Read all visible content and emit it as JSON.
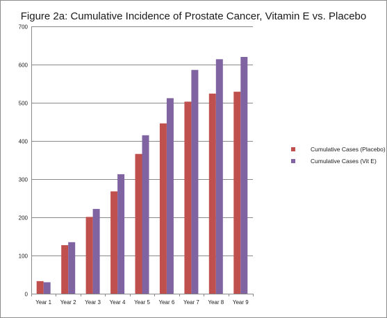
{
  "chart_data": {
    "type": "bar",
    "title": "Figure 2a: Cumulative Incidence of Prostate Cancer, Vitamin E vs. Placebo",
    "xlabel": "",
    "ylabel": "",
    "categories": [
      "Year 1",
      "Year 2",
      "Year 3",
      "Year 4",
      "Year 5",
      "Year 6",
      "Year 7",
      "Year 8",
      "Year 9"
    ],
    "series": [
      {
        "name": "Cumulative  Cases (Placebo)",
        "color": "#c0504d",
        "values": [
          33,
          127,
          201,
          268,
          366,
          446,
          503,
          524,
          529
        ]
      },
      {
        "name": "Cumulative  Cases (Vit E)",
        "color": "#8064a2",
        "values": [
          30,
          135,
          222,
          313,
          415,
          512,
          586,
          614,
          620
        ]
      }
    ],
    "ylim": [
      0,
      700
    ],
    "yticks": [
      "0",
      "100",
      "200",
      "300",
      "400",
      "500",
      "600",
      "700"
    ],
    "grid": true,
    "legend": "right"
  }
}
